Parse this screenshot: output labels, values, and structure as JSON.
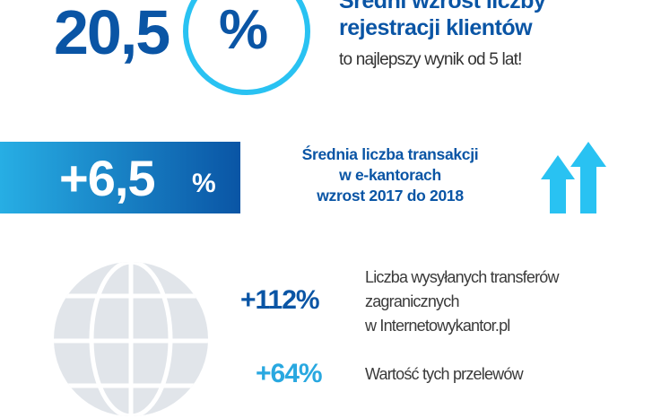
{
  "colors": {
    "dark_blue": "#0a55a5",
    "light_blue": "#29c2f2",
    "globe_gray": "#e1e5ea"
  },
  "top": {
    "value": "20,5",
    "percent": "%",
    "title_line1": "Średni wzrost liczby",
    "title_line2": "rejestracji klientów",
    "subtitle": "to najlepszy wynik od 5 lat!"
  },
  "band": {
    "value": "+6,5",
    "percent": "%",
    "line1": "Średnia liczba transakcji",
    "line2": "w e-kantorach",
    "line3": "wzrost 2017 do 2018",
    "icon": "double-up-arrow-icon"
  },
  "stats": [
    {
      "value": "+112%",
      "line1": "Liczba wysyłanych transferów",
      "line2": "zagranicznych",
      "line3": "w Internetowykantor.pl"
    },
    {
      "value": "+64%",
      "line1": "Wartość tych przelewów"
    }
  ],
  "globe_icon": "globe-icon"
}
